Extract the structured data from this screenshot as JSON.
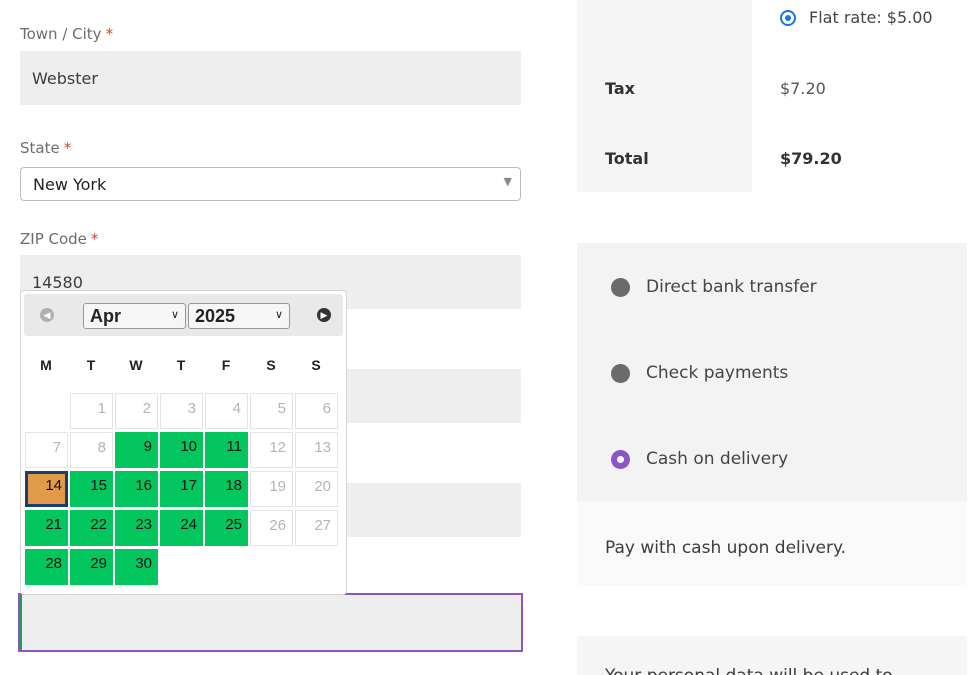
{
  "billing": {
    "town_label": "Town / City",
    "town_value": "Webster",
    "state_label": "State",
    "state_value": "New York",
    "zip_label": "ZIP Code",
    "zip_value": "14580",
    "required_mark": "*"
  },
  "datepicker": {
    "month": "Apr",
    "year": "2025",
    "prev_icon": "prev-circle-icon",
    "next_icon": "next-circle-icon",
    "weekdays": [
      "M",
      "T",
      "W",
      "T",
      "F",
      "S",
      "S"
    ],
    "days": [
      {
        "d": "1",
        "state": "disabled"
      },
      {
        "d": "2",
        "state": "disabled"
      },
      {
        "d": "3",
        "state": "disabled"
      },
      {
        "d": "4",
        "state": "disabled"
      },
      {
        "d": "5",
        "state": "disabled"
      },
      {
        "d": "6",
        "state": "disabled"
      },
      {
        "d": "7",
        "state": "disabled"
      },
      {
        "d": "8",
        "state": "disabled"
      },
      {
        "d": "9",
        "state": "available"
      },
      {
        "d": "10",
        "state": "available"
      },
      {
        "d": "11",
        "state": "available"
      },
      {
        "d": "12",
        "state": "disabled"
      },
      {
        "d": "13",
        "state": "disabled"
      },
      {
        "d": "14",
        "state": "today"
      },
      {
        "d": "15",
        "state": "available"
      },
      {
        "d": "16",
        "state": "available"
      },
      {
        "d": "17",
        "state": "available"
      },
      {
        "d": "18",
        "state": "available"
      },
      {
        "d": "19",
        "state": "disabled"
      },
      {
        "d": "20",
        "state": "disabled"
      },
      {
        "d": "21",
        "state": "available"
      },
      {
        "d": "22",
        "state": "available"
      },
      {
        "d": "23",
        "state": "available"
      },
      {
        "d": "24",
        "state": "available"
      },
      {
        "d": "25",
        "state": "available"
      },
      {
        "d": "26",
        "state": "disabled"
      },
      {
        "d": "27",
        "state": "disabled"
      },
      {
        "d": "28",
        "state": "available"
      },
      {
        "d": "29",
        "state": "available"
      },
      {
        "d": "30",
        "state": "available"
      }
    ],
    "colors": {
      "available": "#03c75e",
      "today": "#e09a48",
      "today_border": "#1c3b6e"
    }
  },
  "order": {
    "shipping_option": "Flat rate: $5.00",
    "tax_label": "Tax",
    "tax_value": "$7.20",
    "total_label": "Total",
    "total_value": "$79.20"
  },
  "payment": {
    "methods": [
      {
        "label": "Direct bank transfer",
        "selected": false
      },
      {
        "label": "Check payments",
        "selected": false
      },
      {
        "label": "Cash on delivery",
        "selected": true
      }
    ],
    "description": "Pay with cash upon delivery.",
    "privacy_text": "Your personal data will be used to"
  }
}
